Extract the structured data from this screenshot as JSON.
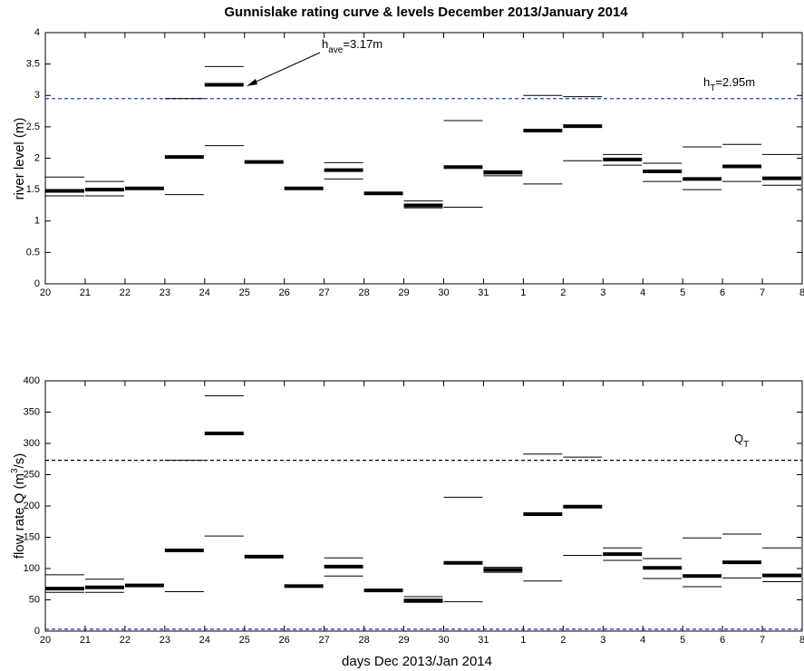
{
  "chart_data": [
    {
      "type": "range",
      "title": "Gunnislake rating curve & levels December 2013/January 2014",
      "y_label": "river level (m)",
      "categories": [
        "20",
        "21",
        "22",
        "23",
        "24",
        "25",
        "26",
        "27",
        "28",
        "29",
        "30",
        "31",
        "1",
        "2",
        "3",
        "4",
        "5",
        "6",
        "7",
        "8"
      ],
      "ylim": [
        0,
        4
      ],
      "yticks": [
        0,
        0.5,
        1,
        1.5,
        2,
        2.5,
        3,
        3.5,
        4
      ],
      "series": [
        {
          "color": "#000000",
          "line_width": 1,
          "values": [
            1.7,
            1.63,
            null,
            2.95,
            3.46,
            null,
            null,
            1.93,
            null,
            1.32,
            2.6,
            1.8,
            3.0,
            2.98,
            2.06,
            1.92,
            2.18,
            2.22,
            2.06,
            null
          ]
        },
        {
          "color": "#000000",
          "line_width": 4,
          "values": [
            1.48,
            1.5,
            1.52,
            2.02,
            3.17,
            1.94,
            1.52,
            1.81,
            1.44,
            1.25,
            1.86,
            1.77,
            2.44,
            2.51,
            1.98,
            1.79,
            1.67,
            1.87,
            1.68,
            null
          ]
        },
        {
          "color": "#000000",
          "line_width": 1,
          "values": [
            1.4,
            1.4,
            null,
            1.42,
            2.2,
            null,
            null,
            1.67,
            null,
            1.21,
            1.22,
            1.72,
            1.59,
            1.96,
            1.89,
            1.63,
            1.5,
            1.63,
            1.57,
            null
          ]
        }
      ],
      "hlines": [
        {
          "value": 2.95,
          "color": "#2b3bc4"
        }
      ],
      "annotations": [
        {
          "main": "h",
          "sub": "ave",
          "rest": "=3.17m"
        },
        {
          "main": "h",
          "sub": "T",
          "rest": "=2.95m"
        }
      ]
    },
    {
      "type": "range",
      "y_label": {
        "before": "flow rate Q (m",
        "sup": "3",
        "after": "/s)"
      },
      "x_label": "days Dec 2013/Jan 2014",
      "categories": [
        "20",
        "21",
        "22",
        "23",
        "24",
        "25",
        "26",
        "27",
        "28",
        "29",
        "30",
        "31",
        "1",
        "2",
        "3",
        "4",
        "5",
        "6",
        "7",
        "8"
      ],
      "ylim": [
        0,
        400
      ],
      "yticks": [
        0,
        50,
        100,
        150,
        200,
        250,
        300,
        350,
        400
      ],
      "series": [
        {
          "color": "#000000",
          "line_width": 1,
          "values": [
            90,
            83,
            null,
            273,
            376,
            null,
            null,
            117,
            null,
            55,
            214,
            102,
            283,
            278,
            133,
            116,
            149,
            155,
            133,
            null
          ]
        },
        {
          "color": "#000000",
          "line_width": 4,
          "values": [
            68,
            70,
            73,
            129,
            316,
            119,
            72,
            103,
            65,
            49,
            109,
            98,
            187,
            199,
            123,
            101,
            88,
            110,
            89,
            null
          ]
        },
        {
          "color": "#000000",
          "line_width": 1,
          "values": [
            62,
            62,
            null,
            63,
            152,
            null,
            null,
            88,
            null,
            46,
            47,
            94,
            80,
            121,
            113,
            84,
            71,
            85,
            79,
            null
          ]
        }
      ],
      "hlines": [
        {
          "value": 273,
          "color": "#000000"
        },
        {
          "value": 3,
          "color": "#2b3bc4"
        }
      ],
      "annotations": [
        {
          "main": "Q",
          "sub": "T"
        }
      ]
    }
  ]
}
